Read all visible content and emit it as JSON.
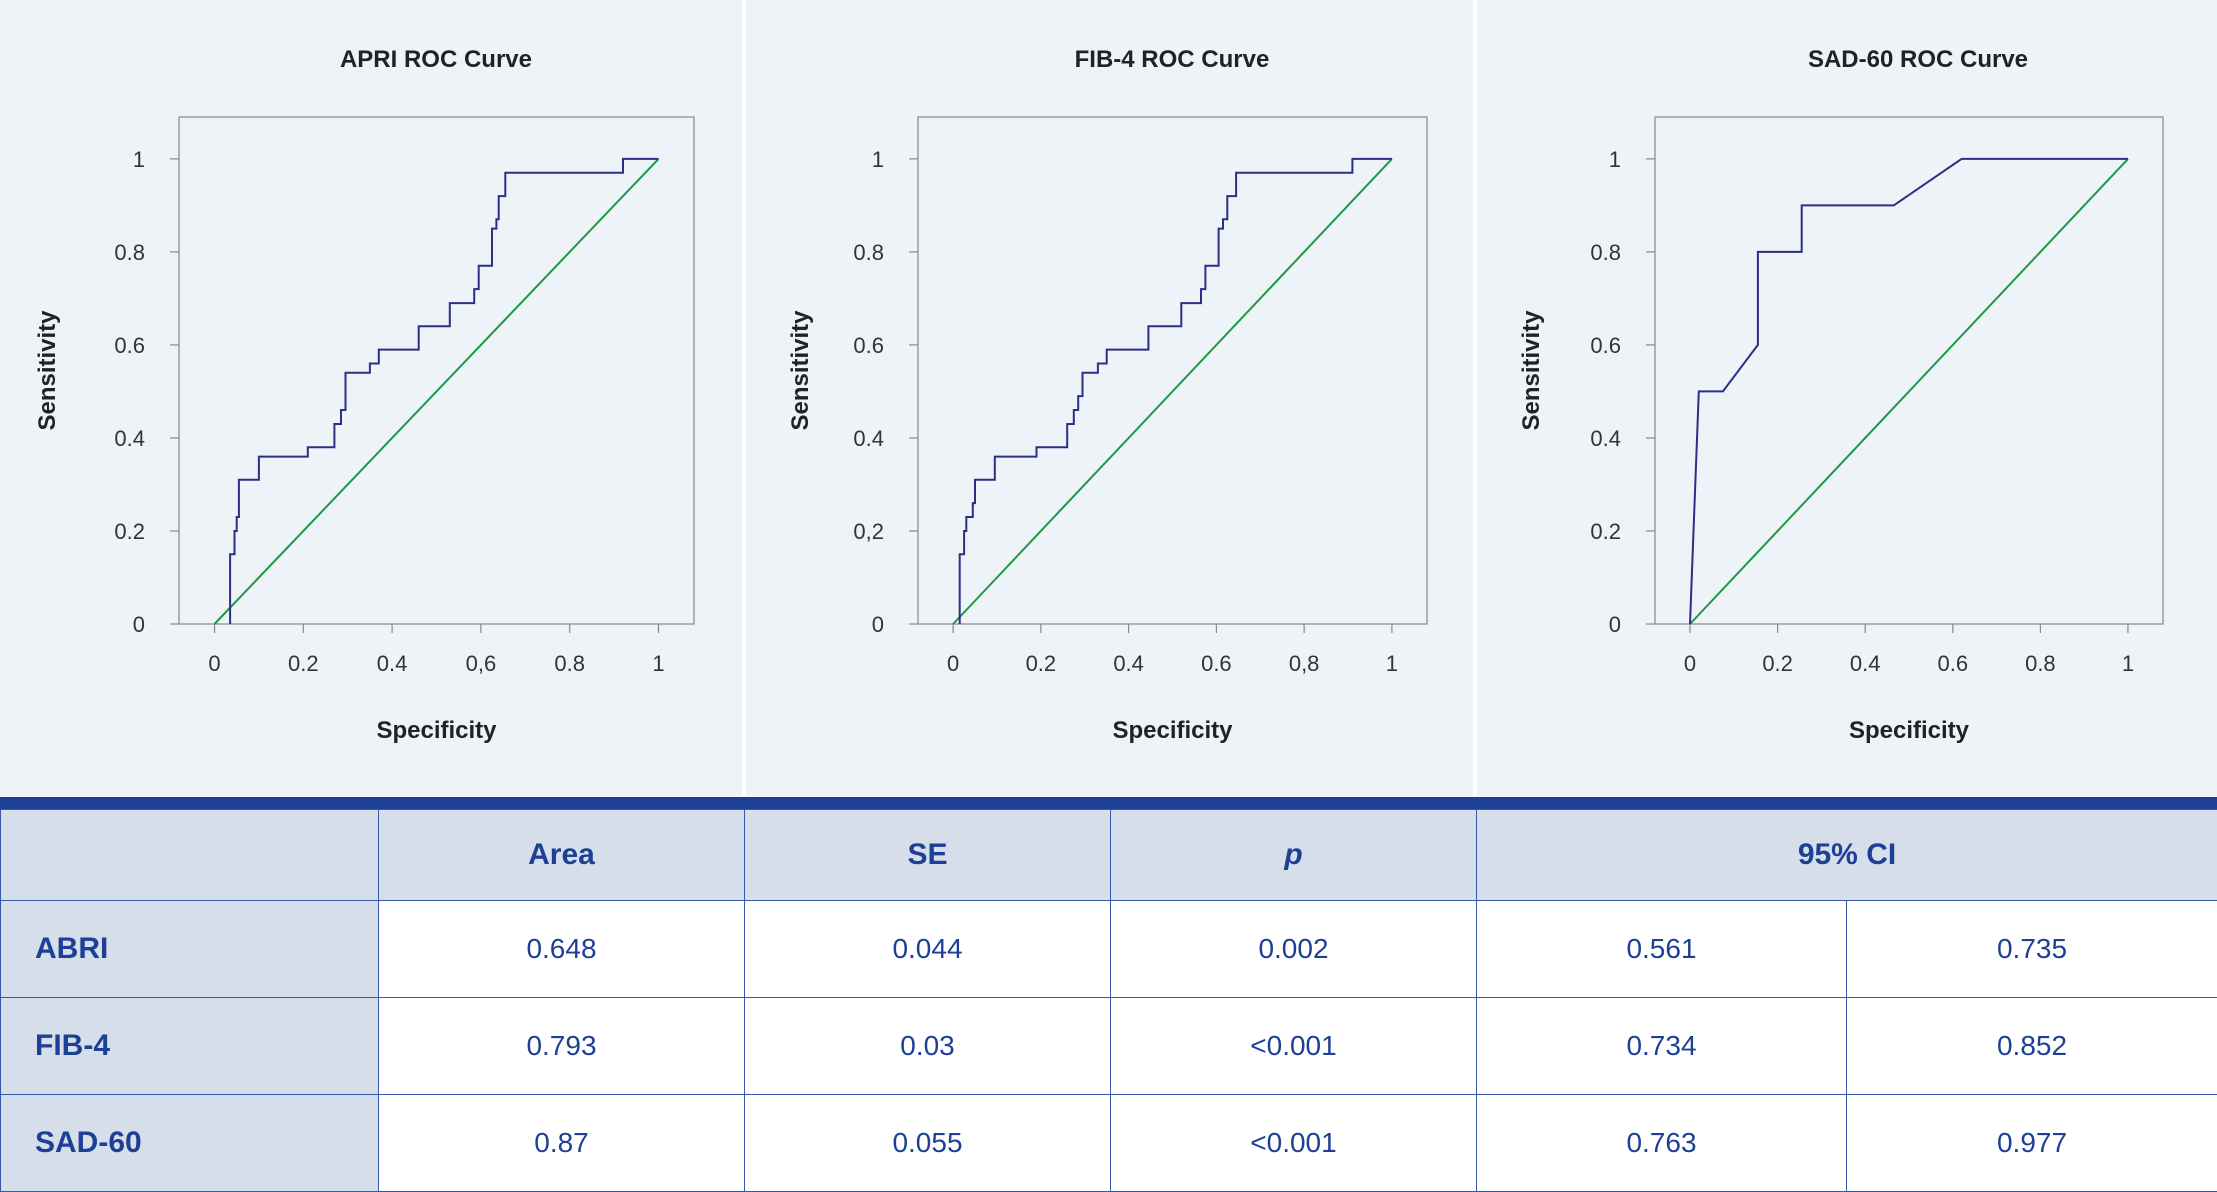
{
  "chart_data": [
    {
      "type": "line",
      "title": "APRI ROC Curve",
      "xlabel": "Specificity",
      "ylabel": "Sensitivity",
      "xlim": [
        -0.08,
        1.08
      ],
      "ylim": [
        0,
        1.09
      ],
      "xtick_labels": [
        "0",
        "0.2",
        "0.4",
        "0,6",
        "0.8",
        "1"
      ],
      "ytick_labels": [
        "0",
        "0.2",
        "0.4",
        "0.6",
        "0.8",
        "1"
      ],
      "grid": false,
      "series": [
        {
          "color": "#2b2f86",
          "x": [
            0.035,
            0.035,
            0.045,
            0.045,
            0.05,
            0.05,
            0.055,
            0.055,
            0.065,
            0.065,
            0.1,
            0.1,
            0.21,
            0.21,
            0.27,
            0.27,
            0.285,
            0.285,
            0.295,
            0.295,
            0.31,
            0.31,
            0.35,
            0.35,
            0.37,
            0.37,
            0.46,
            0.46,
            0.53,
            0.53,
            0.585,
            0.585,
            0.595,
            0.595,
            0.625,
            0.625,
            0.635,
            0.635,
            0.64,
            0.64,
            0.655,
            0.655,
            0.68,
            0.68,
            0.92,
            0.92,
            1.0
          ],
          "y": [
            0,
            0.15,
            0.15,
            0.2,
            0.2,
            0.23,
            0.23,
            0.31,
            0.31,
            0.31,
            0.31,
            0.36,
            0.36,
            0.38,
            0.38,
            0.43,
            0.43,
            0.46,
            0.46,
            0.54,
            0.54,
            0.54,
            0.54,
            0.56,
            0.56,
            0.59,
            0.59,
            0.64,
            0.64,
            0.69,
            0.69,
            0.72,
            0.72,
            0.77,
            0.77,
            0.85,
            0.85,
            0.87,
            0.87,
            0.92,
            0.92,
            0.97,
            0.97,
            0.97,
            0.97,
            1.0,
            1.0
          ]
        },
        {
          "color": "#1a9a48",
          "x": [
            0,
            1
          ],
          "y": [
            0,
            1
          ]
        }
      ]
    },
    {
      "type": "line",
      "title": "FIB-4 ROC Curve",
      "xlabel": "Specificity",
      "ylabel": "Sensitivity",
      "xlim": [
        -0.08,
        1.08
      ],
      "ylim": [
        0,
        1.09
      ],
      "xtick_labels": [
        "0",
        "0.2",
        "0.4",
        "0.6",
        "0,8",
        "1"
      ],
      "ytick_labels": [
        "0",
        "0,2",
        "0.4",
        "0.6",
        "0.8",
        "1"
      ],
      "grid": false,
      "series": [
        {
          "color": "#2b2f86",
          "x": [
            0.015,
            0.015,
            0.025,
            0.025,
            0.03,
            0.03,
            0.04,
            0.04,
            0.045,
            0.045,
            0.05,
            0.05,
            0.075,
            0.075,
            0.095,
            0.095,
            0.19,
            0.19,
            0.26,
            0.26,
            0.275,
            0.275,
            0.285,
            0.285,
            0.295,
            0.295,
            0.33,
            0.33,
            0.35,
            0.35,
            0.445,
            0.445,
            0.52,
            0.52,
            0.565,
            0.565,
            0.575,
            0.575,
            0.605,
            0.605,
            0.615,
            0.615,
            0.625,
            0.625,
            0.645,
            0.645,
            0.665,
            0.665,
            0.91,
            0.91,
            1.0
          ],
          "y": [
            0,
            0.15,
            0.15,
            0.2,
            0.2,
            0.23,
            0.23,
            0.23,
            0.23,
            0.26,
            0.26,
            0.31,
            0.31,
            0.31,
            0.31,
            0.36,
            0.36,
            0.38,
            0.38,
            0.43,
            0.43,
            0.46,
            0.46,
            0.49,
            0.49,
            0.54,
            0.54,
            0.56,
            0.56,
            0.59,
            0.59,
            0.64,
            0.64,
            0.69,
            0.69,
            0.72,
            0.72,
            0.77,
            0.77,
            0.85,
            0.85,
            0.87,
            0.87,
            0.92,
            0.92,
            0.97,
            0.97,
            0.97,
            0.97,
            1.0,
            1.0
          ]
        },
        {
          "color": "#1a9a48",
          "x": [
            0,
            1
          ],
          "y": [
            0,
            1
          ]
        }
      ]
    },
    {
      "type": "line",
      "title": "SAD-60 ROC Curve",
      "xlabel": "Specificity",
      "ylabel": "Sensitivity",
      "xlim": [
        -0.08,
        1.08
      ],
      "ylim": [
        0,
        1.09
      ],
      "xtick_labels": [
        "0",
        "0.2",
        "0.4",
        "0.6",
        "0.8",
        "1"
      ],
      "ytick_labels": [
        "0",
        "0.2",
        "0.4",
        "0.6",
        "0.8",
        "1"
      ],
      "grid": false,
      "series": [
        {
          "color": "#2b2f86",
          "x": [
            0,
            0.02,
            0.075,
            0.155,
            0.155,
            0.255,
            0.255,
            0.465,
            0.62,
            1.0
          ],
          "y": [
            0,
            0.5,
            0.5,
            0.6,
            0.8,
            0.8,
            0.9,
            0.9,
            1.0,
            1.0
          ]
        },
        {
          "color": "#1a9a48",
          "x": [
            0,
            1
          ],
          "y": [
            0,
            1
          ]
        }
      ]
    }
  ],
  "table": {
    "headers": {
      "blank": "",
      "area": "Area",
      "se": "SE",
      "p": "p",
      "ci": "95% CI"
    },
    "rows": [
      {
        "label": "ABRI",
        "area": "0.648",
        "se": "0.044",
        "p": "0.002",
        "ci_low": "0.561",
        "ci_high": "0.735"
      },
      {
        "label": "FIB-4",
        "area": "0.793",
        "se": "0.03",
        "p": "<0.001",
        "ci_low": "0.734",
        "ci_high": "0.852"
      },
      {
        "label": "SAD-60",
        "area": "0.87",
        "se": "0.055",
        "p": "<0.001",
        "ci_low": "0.763",
        "ci_high": "0.977"
      }
    ]
  },
  "colors": {
    "curve": "#2b2f86",
    "reference": "#1a9a48",
    "accent": "#1d3f96",
    "header_bg": "#d6deea",
    "panel_bg": "#eef3f8"
  }
}
